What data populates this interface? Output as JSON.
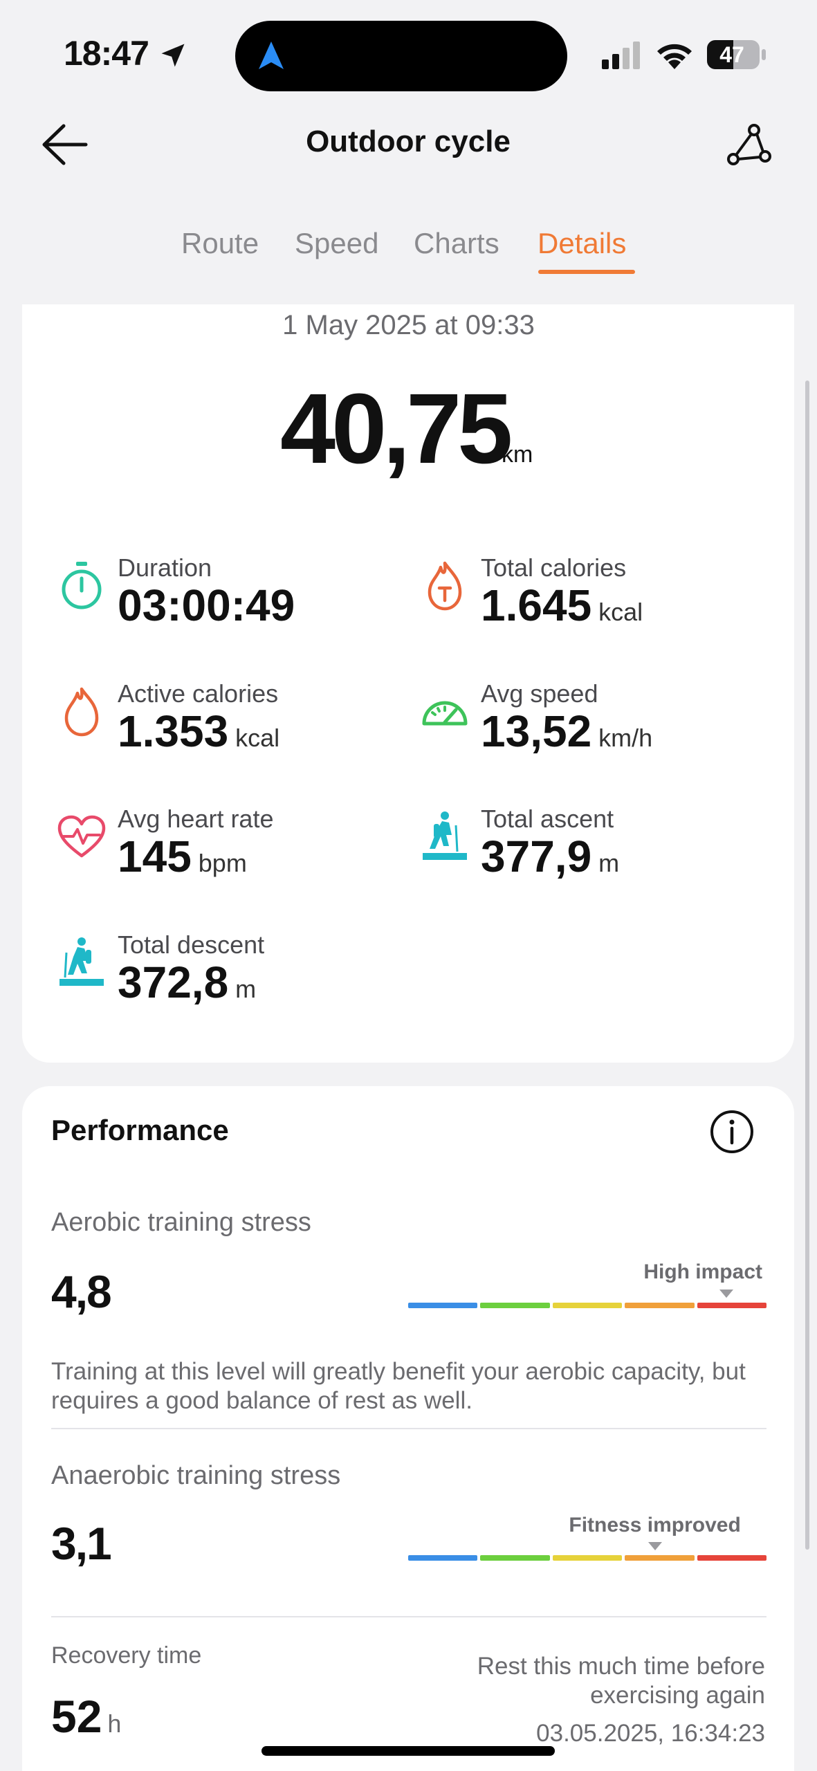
{
  "status_bar": {
    "time": "18:47",
    "battery": "47"
  },
  "header": {
    "title": "Outdoor cycle"
  },
  "tabs": [
    {
      "label": "Route",
      "active": false
    },
    {
      "label": "Speed",
      "active": false
    },
    {
      "label": "Charts",
      "active": false
    },
    {
      "label": "Details",
      "active": true
    }
  ],
  "summary": {
    "date": "1 May 2025 at 09:33",
    "distance": "40,75",
    "distance_unit": "km",
    "stats": [
      {
        "label": "Duration",
        "value": "03:00:49",
        "unit": "",
        "icon": "stopwatch-icon",
        "color": "#2cc6a0"
      },
      {
        "label": "Total calories",
        "value": "1.645",
        "unit": "kcal",
        "icon": "flame-t-icon",
        "color": "#e8663a"
      },
      {
        "label": "Active calories",
        "value": "1.353",
        "unit": "kcal",
        "icon": "flame-icon",
        "color": "#e8663a"
      },
      {
        "label": "Avg speed",
        "value": "13,52",
        "unit": "km/h",
        "icon": "speedometer-icon",
        "color": "#3ec35a"
      },
      {
        "label": "Avg heart rate",
        "value": "145",
        "unit": "bpm",
        "icon": "heart-rate-icon",
        "color": "#e84a6a"
      },
      {
        "label": "Total ascent",
        "value": "377,9",
        "unit": "m",
        "icon": "hiker-ascent-icon",
        "color": "#1fb8c8"
      },
      {
        "label": "Total descent",
        "value": "372,8",
        "unit": "m",
        "icon": "hiker-descent-icon",
        "color": "#1fb8c8"
      }
    ]
  },
  "performance": {
    "title": "Performance",
    "aerobic": {
      "label": "Aerobic training stress",
      "value": "4,8",
      "level_label": "High impact",
      "level_index": 4,
      "description": "Training at this level will greatly benefit your aerobic capacity, but requires a good balance of rest as well."
    },
    "anaerobic": {
      "label": "Anaerobic training stress",
      "value": "3,1",
      "level_label": "Fitness improved",
      "level_index": 3
    },
    "scale_colors": [
      "#3a8ee6",
      "#6ccf3e",
      "#e6d23a",
      "#f0a03a",
      "#e6443a"
    ],
    "recovery": {
      "label": "Recovery time",
      "value": "52",
      "unit": "h",
      "note": "Rest this much time before exercising again",
      "timestamp": "03.05.2025, 16:34:23"
    }
  }
}
